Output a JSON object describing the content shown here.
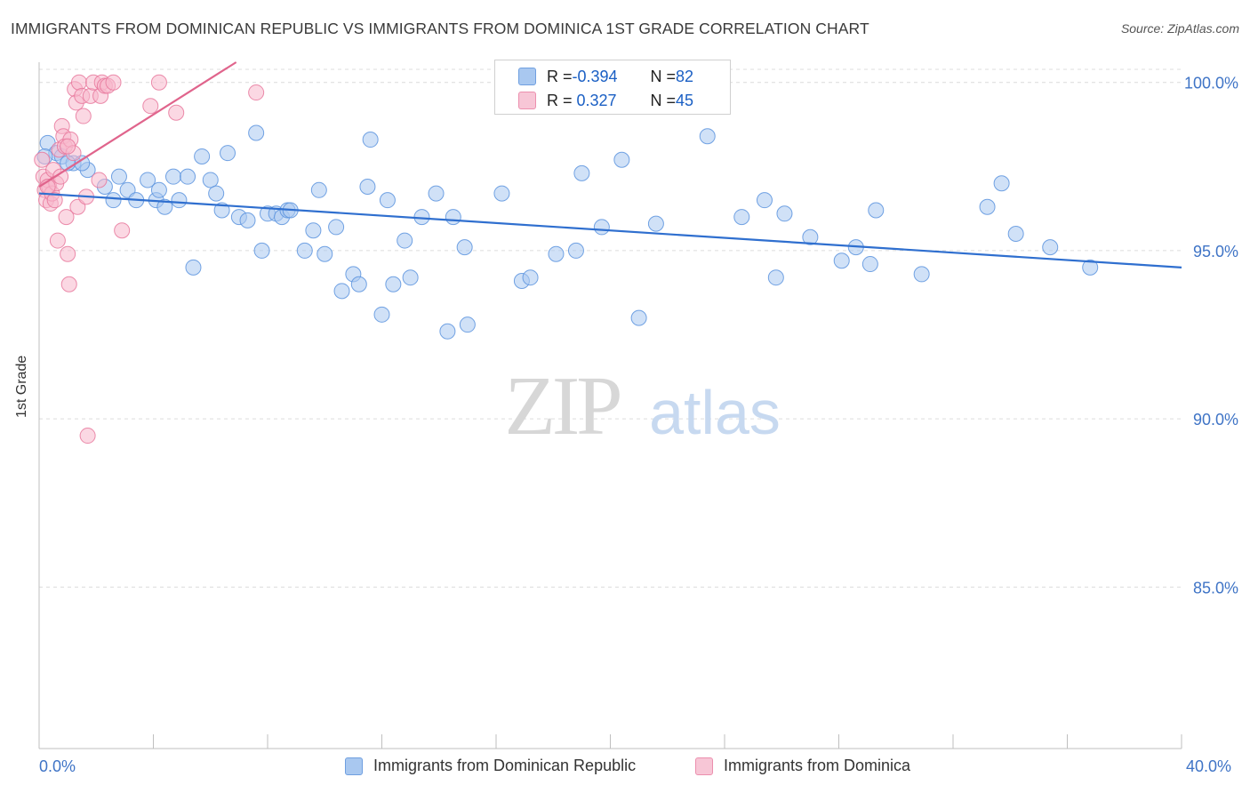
{
  "title": "IMMIGRANTS FROM DOMINICAN REPUBLIC VS IMMIGRANTS FROM DOMINICA 1ST GRADE CORRELATION CHART",
  "source": "Source: ZipAtlas.com",
  "watermark": {
    "zip": "ZIP",
    "atlas": "atlas"
  },
  "stats": [
    {
      "r_label": "R = ",
      "r_value": "-0.394",
      "n_label": "N = ",
      "n_value": "82",
      "color": "#a9c8f0"
    },
    {
      "r_label": "R = ",
      "r_value": " 0.327",
      "n_label": "N = ",
      "n_value": "45",
      "color": "#f7b8cc"
    }
  ],
  "chart_data": {
    "type": "scatter",
    "title": "IMMIGRANTS FROM DOMINICAN REPUBLIC VS IMMIGRANTS FROM DOMINICA 1ST GRADE CORRELATION CHART",
    "xlabel": "",
    "ylabel": "1st Grade",
    "xlim": [
      0,
      40
    ],
    "ylim": [
      80.2,
      100.6
    ],
    "x_tick_labels": [
      "0.0%",
      "40.0%"
    ],
    "y_ticks": [
      {
        "value": 85,
        "label": "85.0%"
      },
      {
        "value": 90,
        "label": "90.0%"
      },
      {
        "value": 95,
        "label": "95.0%"
      },
      {
        "value": 100,
        "label": "100.0%"
      }
    ],
    "grid": true,
    "legend": "bottom",
    "series": [
      {
        "name": "Immigrants from Dominican Republic",
        "color": "#5b93de",
        "fill": "#a9c8f0",
        "trend": {
          "x": [
            0,
            40
          ],
          "y": [
            96.7,
            94.5
          ],
          "color": "#2f6fcf"
        },
        "points": [
          [
            0.3,
            98.2
          ],
          [
            0.6,
            97.9
          ],
          [
            0.8,
            97.8
          ],
          [
            1.2,
            97.6
          ],
          [
            1.7,
            97.4
          ],
          [
            1.5,
            97.6
          ],
          [
            2.3,
            96.9
          ],
          [
            2.6,
            96.5
          ],
          [
            2.8,
            97.2
          ],
          [
            3.1,
            96.8
          ],
          [
            3.4,
            96.5
          ],
          [
            3.8,
            97.1
          ],
          [
            4.1,
            96.5
          ],
          [
            4.2,
            96.8
          ],
          [
            4.4,
            96.3
          ],
          [
            4.7,
            97.2
          ],
          [
            4.9,
            96.5
          ],
          [
            5.2,
            97.2
          ],
          [
            5.4,
            94.5
          ],
          [
            5.7,
            97.8
          ],
          [
            6.0,
            97.1
          ],
          [
            6.2,
            96.7
          ],
          [
            6.4,
            96.2
          ],
          [
            6.6,
            97.9
          ],
          [
            7.0,
            96.0
          ],
          [
            7.3,
            95.9
          ],
          [
            7.6,
            98.5
          ],
          [
            7.8,
            95.0
          ],
          [
            8.0,
            96.1
          ],
          [
            8.3,
            96.1
          ],
          [
            8.5,
            96.0
          ],
          [
            8.7,
            96.2
          ],
          [
            8.8,
            96.2
          ],
          [
            9.3,
            95.0
          ],
          [
            9.6,
            95.6
          ],
          [
            9.8,
            96.8
          ],
          [
            10.0,
            94.9
          ],
          [
            10.4,
            95.7
          ],
          [
            10.6,
            93.8
          ],
          [
            11.0,
            94.3
          ],
          [
            11.2,
            94.0
          ],
          [
            11.5,
            96.9
          ],
          [
            11.6,
            98.3
          ],
          [
            12.0,
            93.1
          ],
          [
            12.2,
            96.5
          ],
          [
            12.4,
            94.0
          ],
          [
            12.8,
            95.3
          ],
          [
            13.0,
            94.2
          ],
          [
            13.4,
            96.0
          ],
          [
            13.9,
            96.7
          ],
          [
            14.3,
            92.6
          ],
          [
            14.5,
            96.0
          ],
          [
            14.9,
            95.1
          ],
          [
            15.0,
            92.8
          ],
          [
            16.2,
            96.7
          ],
          [
            16.9,
            94.1
          ],
          [
            17.2,
            94.2
          ],
          [
            18.1,
            94.9
          ],
          [
            18.8,
            95.0
          ],
          [
            19.0,
            97.3
          ],
          [
            19.7,
            95.7
          ],
          [
            20.4,
            97.7
          ],
          [
            21.0,
            93.0
          ],
          [
            21.6,
            95.8
          ],
          [
            23.4,
            98.4
          ],
          [
            24.6,
            96.0
          ],
          [
            25.4,
            96.5
          ],
          [
            25.8,
            94.2
          ],
          [
            26.1,
            96.1
          ],
          [
            27.0,
            95.4
          ],
          [
            28.1,
            94.7
          ],
          [
            28.6,
            95.1
          ],
          [
            29.1,
            94.6
          ],
          [
            29.3,
            96.2
          ],
          [
            30.9,
            94.3
          ],
          [
            33.2,
            96.3
          ],
          [
            33.7,
            97.0
          ],
          [
            34.2,
            95.5
          ],
          [
            35.4,
            95.1
          ],
          [
            36.8,
            94.5
          ],
          [
            0.2,
            97.8
          ],
          [
            1.0,
            97.6
          ]
        ]
      },
      {
        "name": "Immigrants from Dominica",
        "color": "#e8789c",
        "fill": "#f7b8cc",
        "trend": {
          "x": [
            0,
            6.9
          ],
          "y": [
            96.9,
            100.6
          ],
          "color": "#e0648c"
        },
        "points": [
          [
            0.1,
            97.7
          ],
          [
            0.15,
            97.2
          ],
          [
            0.2,
            96.8
          ],
          [
            0.25,
            96.5
          ],
          [
            0.3,
            97.1
          ],
          [
            0.35,
            96.9
          ],
          [
            0.4,
            96.4
          ],
          [
            0.45,
            96.7
          ],
          [
            0.5,
            97.4
          ],
          [
            0.55,
            96.5
          ],
          [
            0.6,
            97.0
          ],
          [
            0.65,
            95.3
          ],
          [
            0.7,
            98.0
          ],
          [
            0.75,
            97.2
          ],
          [
            0.8,
            98.7
          ],
          [
            0.85,
            98.4
          ],
          [
            0.9,
            98.1
          ],
          [
            0.95,
            96.0
          ],
          [
            1.0,
            94.9
          ],
          [
            1.05,
            94.0
          ],
          [
            1.1,
            98.3
          ],
          [
            1.2,
            97.9
          ],
          [
            1.25,
            99.8
          ],
          [
            1.3,
            99.4
          ],
          [
            1.35,
            96.3
          ],
          [
            1.4,
            100.0
          ],
          [
            1.5,
            99.6
          ],
          [
            1.55,
            99.0
          ],
          [
            1.65,
            96.6
          ],
          [
            1.7,
            89.5
          ],
          [
            1.8,
            99.6
          ],
          [
            1.9,
            100.0
          ],
          [
            2.1,
            97.1
          ],
          [
            2.15,
            99.6
          ],
          [
            2.2,
            100.0
          ],
          [
            2.3,
            99.9
          ],
          [
            2.4,
            99.9
          ],
          [
            2.6,
            100.0
          ],
          [
            2.9,
            95.6
          ],
          [
            3.9,
            99.3
          ],
          [
            4.2,
            100.0
          ],
          [
            4.8,
            99.1
          ],
          [
            7.6,
            99.7
          ],
          [
            0.3,
            96.9
          ],
          [
            1.0,
            98.1
          ]
        ]
      }
    ]
  }
}
